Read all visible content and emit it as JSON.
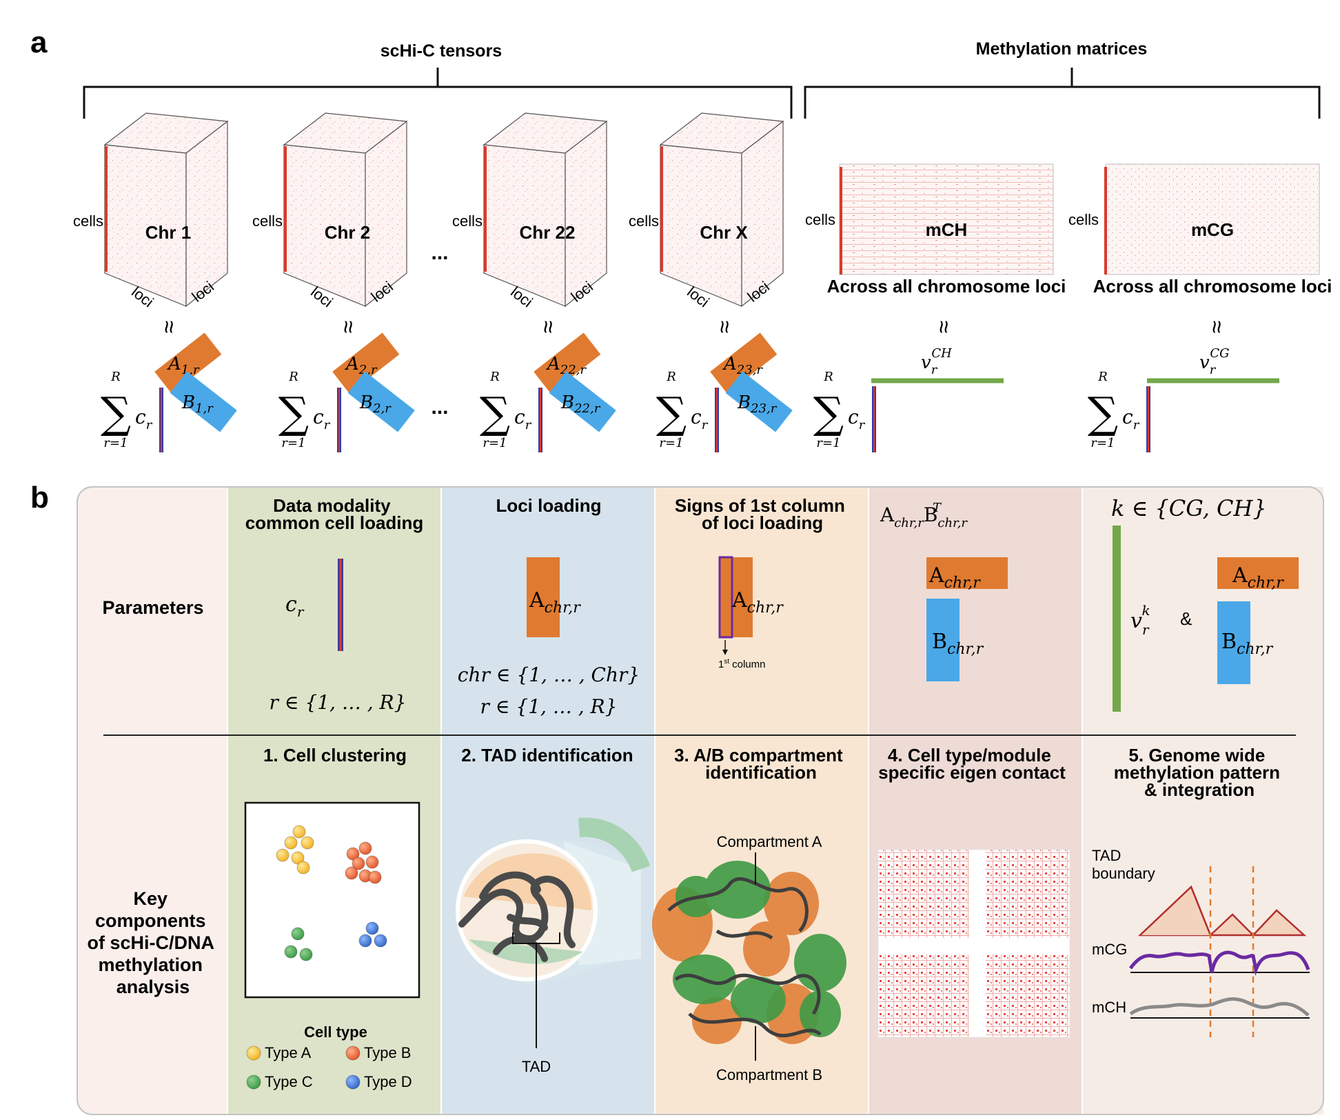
{
  "panel_a": {
    "label": "a",
    "schic_title": "scHi-C tensors",
    "meth_title": "Methylation matrices",
    "cubes": [
      {
        "name": "Chr 1",
        "A": "A",
        "A_sub": "1,r",
        "B": "B",
        "B_sub": "1,r"
      },
      {
        "name": "Chr 2",
        "A": "A",
        "A_sub": "2,r",
        "B": "B",
        "B_sub": "2,r"
      },
      {
        "name": "Chr 22",
        "A": "A",
        "A_sub": "22,r",
        "B": "B",
        "B_sub": "22,r"
      },
      {
        "name": "Chr X",
        "A": "A",
        "A_sub": "23,r",
        "B": "B",
        "B_sub": "23,r"
      }
    ],
    "cells_label": "cells",
    "loci_label": "loci",
    "ellipsis": "...",
    "approx": "≈",
    "sum_top": "R",
    "sum_symbol": "∑",
    "sum_bottom": "r=1",
    "c_r": "c",
    "c_r_sub": "r",
    "matrices": [
      {
        "name": "mCH",
        "caption": "Across all chromosome loci",
        "v": "v",
        "v_sub": "r",
        "v_sup": "CH"
      },
      {
        "name": "mCG",
        "caption": "Across all chromosome loci",
        "v": "v",
        "v_sub": "r",
        "v_sup": "CG"
      }
    ]
  },
  "panel_b": {
    "label": "b",
    "row_parameters": "Parameters",
    "row_key": [
      "Key",
      "components",
      "of scHi-C/DNA",
      "methylation",
      "analysis"
    ],
    "columns": [
      {
        "header": [
          "Data modality",
          "common cell loading"
        ],
        "bg": "#dde3c8"
      },
      {
        "header": [
          "Loci loading"
        ],
        "bg": "#d6e3ec"
      },
      {
        "header": [
          "Signs of 1st column",
          "of loci loading"
        ],
        "bg": "#f8e6d2"
      },
      {
        "header": [],
        "bg": "#eedbd6"
      },
      {
        "header": [],
        "bg": "#f6ece6"
      }
    ],
    "col1_params": {
      "c": "c",
      "c_sub": "r",
      "r_set": "r ∈ {1, … , R}"
    },
    "col2_params": {
      "A": "A",
      "A_sub": "chr,r",
      "chr_set": "chr ∈ {1, … , Chr}",
      "r_set": "r ∈ {1, … , R}"
    },
    "col3_params": {
      "A": "A",
      "A_sub": "chr,r",
      "first_col_sup": "st",
      "first_col": "1",
      "first_col_text": "column"
    },
    "col4_params": {
      "formula_A": "A",
      "formula_A_sub": "chr,r",
      "formula_B": "B",
      "formula_B_sub": "chr,r",
      "formula_B_sup": "T",
      "A": "A",
      "A_sub": "chr,r",
      "B": "B",
      "B_sub": "chr,r"
    },
    "col5_params": {
      "k_set": "k ∈ {CG, CH}",
      "v": "v",
      "v_sub": "r",
      "v_sup": "k",
      "amp": "&",
      "A": "A",
      "A_sub": "chr,r",
      "B": "B",
      "B_sub": "chr,r"
    },
    "components": [
      [
        "1. Cell clustering"
      ],
      [
        "2. TAD identification"
      ],
      [
        "3. A/B compartment",
        "identification"
      ],
      [
        "4. Cell type/module",
        "specific eigen contact"
      ],
      [
        "5. Genome wide",
        "methylation pattern",
        "& integration"
      ]
    ],
    "cell_type_title": "Cell type",
    "cell_types": [
      {
        "label": "Type A",
        "color": "#f2b21e"
      },
      {
        "label": "Type B",
        "color": "#e0542a"
      },
      {
        "label": "Type C",
        "color": "#3a9a45"
      },
      {
        "label": "Type D",
        "color": "#2f66c4"
      }
    ],
    "tad_label": "TAD",
    "compartment_a": "Compartment A",
    "compartment_b": "Compartment B",
    "tad_boundary": [
      "TAD",
      "boundary"
    ],
    "mcg": "mCG",
    "mch": "mCH"
  },
  "colors": {
    "orange": "#e07a30",
    "blue": "#4aa8e8",
    "green": "#72a84a",
    "red": "#d93a2b",
    "purple": "#6a2aa0",
    "gray": "#8a8a8a"
  }
}
